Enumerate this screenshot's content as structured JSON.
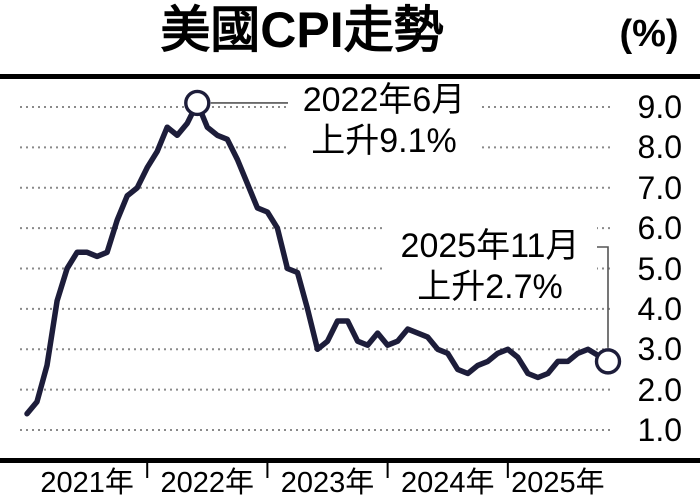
{
  "chart_data": {
    "type": "line",
    "title": "美國CPI走勢",
    "unit_label": "(%)",
    "x_tick_labels": [
      "2021年",
      "2022年",
      "2023年",
      "2024年",
      "2025年"
    ],
    "y_tick_labels": [
      "9.0",
      "8.0",
      "7.0",
      "6.0",
      "5.0",
      "4.0",
      "3.0",
      "2.0",
      "1.0"
    ],
    "y_tick_values": [
      9,
      8,
      7,
      6,
      5,
      4,
      3,
      2,
      1
    ],
    "ylim": [
      1.0,
      9.0
    ],
    "x_range": [
      "2021年1月",
      "2025年11月"
    ],
    "grid": "dotted-horizontal",
    "legend": "none",
    "values": [
      1.4,
      1.7,
      2.6,
      4.2,
      5.0,
      5.4,
      5.4,
      5.3,
      5.4,
      6.2,
      6.8,
      7.0,
      7.5,
      7.9,
      8.5,
      8.3,
      8.6,
      9.1,
      8.5,
      8.3,
      8.2,
      7.7,
      7.1,
      6.5,
      6.4,
      6.0,
      5.0,
      4.9,
      4.0,
      3.0,
      3.2,
      3.7,
      3.7,
      3.2,
      3.1,
      3.4,
      3.1,
      3.2,
      3.5,
      3.4,
      3.3,
      3.0,
      2.9,
      2.5,
      2.4,
      2.6,
      2.7,
      2.9,
      3.0,
      2.8,
      2.4,
      2.3,
      2.4,
      2.7,
      2.7,
      2.9,
      3.0,
      null,
      2.7
    ],
    "annotations": [
      {
        "line1": "2022年6月",
        "line2": "上升9.1%",
        "month_index": 17,
        "value": 9.1
      },
      {
        "line1": "2025年11月",
        "line2": "上升2.7%",
        "month_index": 58,
        "value": 2.7
      }
    ],
    "colors": {
      "line": "#1d1d3a",
      "gridline": "#8a8a8a",
      "axis": "#000000",
      "marker_fill": "#ffffff",
      "callout": "#555555"
    }
  }
}
